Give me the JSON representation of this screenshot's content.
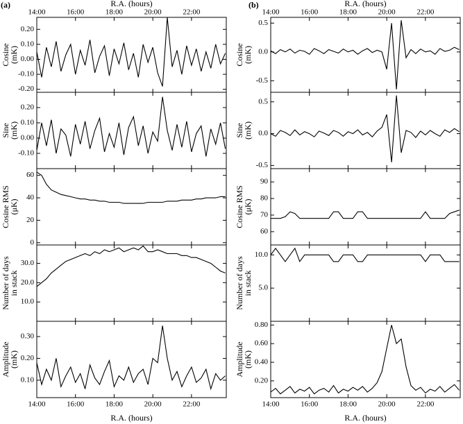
{
  "chart_data": [
    {
      "type": "line",
      "panel_label": "(a)",
      "xlabel": "R.A. (hours)",
      "xtick_labels": "top",
      "ylabel": [
        "Cosine",
        "(mK)"
      ],
      "color": "#000000",
      "x": [
        14,
        14.25,
        14.5,
        14.75,
        15,
        15.25,
        15.5,
        15.75,
        16,
        16.25,
        16.5,
        16.75,
        17,
        17.25,
        17.5,
        17.75,
        18,
        18.25,
        18.5,
        18.75,
        19,
        19.25,
        19.5,
        19.75,
        20,
        20.25,
        20.5,
        20.75,
        21,
        21.25,
        21.5,
        21.75,
        22,
        22.25,
        22.5,
        22.75,
        23,
        23.25,
        23.5,
        23.75
      ],
      "values": [
        0.05,
        -0.12,
        0.08,
        -0.05,
        0.12,
        -0.08,
        0.03,
        0.1,
        -0.1,
        0.06,
        -0.04,
        0.13,
        -0.09,
        0.02,
        0.09,
        -0.11,
        0.07,
        -0.03,
        0.11,
        -0.07,
        0.04,
        -0.12,
        0.1,
        -0.02,
        0.08,
        -0.09,
        -0.18,
        0.28,
        -0.05,
        0.06,
        -0.1,
        0.09,
        -0.04,
        0.07,
        -0.08,
        0.05,
        -0.06,
        0.1,
        -0.03,
        0.04
      ],
      "xlim": [
        14,
        23.8
      ],
      "xticks": [
        {
          "value": 14,
          "label": "14:00"
        },
        {
          "value": 16,
          "label": "16:00"
        },
        {
          "value": 18,
          "label": "18:00"
        },
        {
          "value": 20,
          "label": "20:00"
        },
        {
          "value": 22,
          "label": "22:00"
        }
      ],
      "ylim": [
        -0.22,
        0.28
      ],
      "yticks": [
        {
          "value": -0.2,
          "label": "-0.20"
        },
        {
          "value": -0.1,
          "label": "-0.10"
        },
        {
          "value": 0,
          "label": "0.00"
        },
        {
          "value": 0.1,
          "label": "0.10"
        },
        {
          "value": 0.2,
          "label": "0.20"
        }
      ]
    },
    {
      "type": "line",
      "xtick_labels": "none",
      "ylabel": [
        "Sine",
        "(mK)"
      ],
      "color": "#000000",
      "x": [
        14,
        14.25,
        14.5,
        14.75,
        15,
        15.25,
        15.5,
        15.75,
        16,
        16.25,
        16.5,
        16.75,
        17,
        17.25,
        17.5,
        17.75,
        18,
        18.25,
        18.5,
        18.75,
        19,
        19.25,
        19.5,
        19.75,
        20,
        20.25,
        20.5,
        20.75,
        21,
        21.25,
        21.5,
        21.75,
        22,
        22.25,
        22.5,
        22.75,
        23,
        23.25,
        23.5,
        23.75
      ],
      "values": [
        -0.08,
        0.1,
        -0.05,
        0.12,
        -0.1,
        0.06,
        0.02,
        -0.12,
        0.09,
        -0.04,
        0.11,
        -0.07,
        0.05,
        0.13,
        -0.09,
        0.03,
        -0.06,
        0.1,
        -0.11,
        0.07,
        0.14,
        -0.05,
        0.08,
        -0.1,
        0.04,
        -0.02,
        0.27,
        0.05,
        -0.08,
        0.09,
        -0.06,
        0.11,
        -0.09,
        0.03,
        0.08,
        -0.12,
        0.06,
        -0.04,
        0.1,
        -0.07
      ],
      "xlim": [
        14,
        23.8
      ],
      "xticks": [
        14,
        16,
        18,
        20,
        22
      ],
      "ylim": [
        -0.2,
        0.3
      ],
      "yticks": [
        {
          "value": -0.1,
          "label": "-0.10"
        },
        {
          "value": 0,
          "label": "0.00"
        },
        {
          "value": 0.1,
          "label": "0.10"
        },
        {
          "value": 0.2,
          "label": "0.20"
        }
      ]
    },
    {
      "type": "line",
      "xtick_labels": "none",
      "ylabel": [
        "Cosine RMS",
        "(μK)"
      ],
      "color": "#000000",
      "x": [
        14,
        14.25,
        14.5,
        14.75,
        15,
        15.25,
        15.5,
        15.75,
        16,
        16.25,
        16.5,
        16.75,
        17,
        17.25,
        17.5,
        17.75,
        18,
        18.25,
        18.5,
        18.75,
        19,
        19.25,
        19.5,
        19.75,
        20,
        20.25,
        20.5,
        20.75,
        21,
        21.25,
        21.5,
        21.75,
        22,
        22.25,
        22.5,
        22.75,
        23,
        23.25,
        23.5,
        23.75
      ],
      "values": [
        63,
        60,
        52,
        47,
        45,
        43,
        42,
        41,
        40,
        39,
        39,
        38,
        38,
        37,
        37,
        36,
        36,
        36,
        35,
        35,
        35,
        35,
        35,
        36,
        36,
        36,
        36,
        37,
        37,
        37,
        38,
        38,
        38,
        39,
        39,
        40,
        40,
        40,
        41,
        41
      ],
      "xlim": [
        14,
        23.8
      ],
      "xticks": [
        14,
        16,
        18,
        20,
        22
      ],
      "ylim": [
        -2,
        66
      ],
      "yticks": [
        0,
        20,
        40,
        60
      ]
    },
    {
      "type": "line",
      "xtick_labels": "none",
      "ylabel": [
        "Number of days",
        "in stack"
      ],
      "color": "#000000",
      "x": [
        14,
        14.25,
        14.5,
        14.75,
        15,
        15.25,
        15.5,
        15.75,
        16,
        16.25,
        16.5,
        16.75,
        17,
        17.25,
        17.5,
        17.75,
        18,
        18.25,
        18.5,
        18.75,
        19,
        19.25,
        19.5,
        19.75,
        20,
        20.25,
        20.5,
        20.75,
        21,
        21.25,
        21.5,
        21.75,
        22,
        22.25,
        22.5,
        22.75,
        23,
        23.25,
        23.5,
        23.75
      ],
      "values": [
        18,
        20,
        22,
        25,
        27,
        29,
        31,
        32,
        33,
        34,
        35,
        34,
        36,
        35,
        37,
        36,
        37,
        38,
        36,
        37,
        38,
        37,
        39,
        36,
        36,
        37,
        36,
        35,
        35,
        35,
        34,
        34,
        33,
        33,
        32,
        31,
        30,
        28,
        26,
        25
      ],
      "xlim": [
        14,
        23.8
      ],
      "xticks": [
        14,
        16,
        18,
        20,
        22
      ],
      "ylim": [
        0,
        39.5
      ],
      "yticks": [
        {
          "value": 10,
          "label": "10.0"
        },
        {
          "value": 20,
          "label": "20.0"
        },
        {
          "value": 30,
          "label": "30.0"
        }
      ]
    },
    {
      "type": "line",
      "xlabel": "R.A. (hours)",
      "xtick_labels": "bottom",
      "ylabel": [
        "Amplitude",
        "(mK)"
      ],
      "color": "#000000",
      "x": [
        14,
        14.25,
        14.5,
        14.75,
        15,
        15.25,
        15.5,
        15.75,
        16,
        16.25,
        16.5,
        16.75,
        17,
        17.25,
        17.5,
        17.75,
        18,
        18.25,
        18.5,
        18.75,
        19,
        19.25,
        19.5,
        19.75,
        20,
        20.25,
        20.5,
        20.75,
        21,
        21.25,
        21.5,
        21.75,
        22,
        22.25,
        22.5,
        22.75,
        23,
        23.25,
        23.5,
        23.75
      ],
      "values": [
        0.18,
        0.08,
        0.15,
        0.1,
        0.2,
        0.07,
        0.12,
        0.16,
        0.09,
        0.13,
        0.06,
        0.17,
        0.11,
        0.08,
        0.14,
        0.19,
        0.07,
        0.12,
        0.1,
        0.16,
        0.09,
        0.13,
        0.15,
        0.08,
        0.2,
        0.18,
        0.35,
        0.2,
        0.1,
        0.14,
        0.07,
        0.12,
        0.16,
        0.09,
        0.11,
        0.15,
        0.06,
        0.13,
        0.1,
        0.12
      ],
      "xlim": [
        14,
        23.8
      ],
      "xticks": [
        {
          "value": 14,
          "label": "14:00"
        },
        {
          "value": 16,
          "label": "16:00"
        },
        {
          "value": 18,
          "label": "18:00"
        },
        {
          "value": 20,
          "label": "20:00"
        },
        {
          "value": 22,
          "label": "22:00"
        }
      ],
      "ylim": [
        0.02,
        0.37
      ],
      "yticks": [
        {
          "value": 0.1,
          "label": "0.10"
        },
        {
          "value": 0.2,
          "label": "0.20"
        },
        {
          "value": 0.3,
          "label": "0.30"
        }
      ]
    },
    {
      "type": "line",
      "panel_label": "(b)",
      "xlabel": "R.A. (hours)",
      "xtick_labels": "top",
      "ylabel": [
        "Cosine",
        "(mK)"
      ],
      "color": "#000000",
      "x": [
        14,
        14.25,
        14.5,
        14.75,
        15,
        15.25,
        15.5,
        15.75,
        16,
        16.25,
        16.5,
        16.75,
        17,
        17.25,
        17.5,
        17.75,
        18,
        18.25,
        18.5,
        18.75,
        19,
        19.25,
        19.5,
        19.75,
        20,
        20.25,
        20.5,
        20.75,
        21,
        21.25,
        21.5,
        21.75,
        22,
        22.25,
        22.5,
        22.75,
        23,
        23.25,
        23.5,
        23.75
      ],
      "values": [
        0.02,
        -0.03,
        0.04,
        0.0,
        0.05,
        -0.02,
        0.03,
        0.01,
        -0.04,
        0.06,
        0.02,
        -0.03,
        0.04,
        0.01,
        -0.02,
        0.05,
        0.0,
        0.03,
        -0.04,
        0.02,
        0.06,
        -0.01,
        0.03,
        0.0,
        -0.3,
        0.5,
        -0.65,
        0.55,
        -0.1,
        0.04,
        -0.03,
        0.05,
        0.0,
        0.02,
        -0.04,
        0.06,
        0.01,
        0.03,
        0.08,
        0.04
      ],
      "xlim": [
        14,
        23.8
      ],
      "xticks": [
        {
          "value": 14,
          "label": "14:00"
        },
        {
          "value": 16,
          "label": "16:00"
        },
        {
          "value": 18,
          "label": "18:00"
        },
        {
          "value": 20,
          "label": "20:00"
        },
        {
          "value": 22,
          "label": "22:00"
        }
      ],
      "ylim": [
        -0.7,
        0.6
      ],
      "yticks": [
        {
          "value": -0.5,
          "label": "-0.5"
        },
        {
          "value": 0,
          "label": "0.0"
        },
        {
          "value": 0.5,
          "label": "0.5"
        }
      ]
    },
    {
      "type": "line",
      "xtick_labels": "none",
      "ylabel": [
        "Sine",
        "(mK)"
      ],
      "color": "#000000",
      "x": [
        14,
        14.25,
        14.5,
        14.75,
        15,
        15.25,
        15.5,
        15.75,
        16,
        16.25,
        16.5,
        16.75,
        17,
        17.25,
        17.5,
        17.75,
        18,
        18.25,
        18.5,
        18.75,
        19,
        19.25,
        19.5,
        19.75,
        20,
        20.25,
        20.5,
        20.75,
        21,
        21.25,
        21.5,
        21.75,
        22,
        22.25,
        22.5,
        22.75,
        23,
        23.25,
        23.5,
        23.75
      ],
      "values": [
        0.0,
        -0.04,
        0.05,
        0.02,
        -0.03,
        0.06,
        -0.02,
        0.03,
        0.0,
        -0.05,
        0.04,
        0.01,
        -0.03,
        0.05,
        0.02,
        -0.04,
        0.03,
        0.0,
        0.06,
        -0.02,
        0.02,
        -0.05,
        0.04,
        0.1,
        0.3,
        -0.45,
        0.6,
        -0.3,
        0.05,
        0.02,
        -0.06,
        0.04,
        -0.02,
        0.05,
        0.0,
        -0.04,
        0.06,
        0.02,
        0.08,
        0.03
      ],
      "xlim": [
        14,
        23.8
      ],
      "xticks": [
        14,
        16,
        18,
        20,
        22
      ],
      "ylim": [
        -0.55,
        0.65
      ],
      "yticks": [
        {
          "value": -0.5,
          "label": "-0.5"
        },
        {
          "value": 0,
          "label": "0.0"
        },
        {
          "value": 0.5,
          "label": "0.5"
        }
      ]
    },
    {
      "type": "line",
      "xtick_labels": "none",
      "ylabel": [
        "Cosine RMS",
        "(μK)"
      ],
      "color": "#000000",
      "x": [
        14,
        14.25,
        14.5,
        14.75,
        15,
        15.25,
        15.5,
        15.75,
        16,
        16.25,
        16.5,
        16.75,
        17,
        17.25,
        17.5,
        17.75,
        18,
        18.25,
        18.5,
        18.75,
        19,
        19.25,
        19.5,
        19.75,
        20,
        20.25,
        20.5,
        20.75,
        21,
        21.25,
        21.5,
        21.75,
        22,
        22.25,
        22.5,
        22.75,
        23,
        23.25,
        23.5,
        23.75
      ],
      "values": [
        68,
        68,
        68,
        69,
        72,
        71,
        68,
        68,
        68,
        68,
        68,
        68,
        68,
        72,
        72,
        68,
        68,
        68,
        72,
        72,
        68,
        68,
        68,
        68,
        68,
        68,
        68,
        68,
        68,
        68,
        68,
        68,
        72,
        68,
        68,
        68,
        68,
        71,
        72,
        73
      ],
      "xlim": [
        14,
        23.8
      ],
      "xticks": [
        14,
        16,
        18,
        20,
        22
      ],
      "ylim": [
        52,
        98
      ],
      "yticks": [
        60,
        70,
        80,
        90
      ]
    },
    {
      "type": "line",
      "xtick_labels": "none",
      "ylabel": [
        "Number of days",
        "in stack"
      ],
      "color": "#000000",
      "x": [
        14,
        14.25,
        14.5,
        14.75,
        15,
        15.25,
        15.5,
        15.75,
        16,
        16.25,
        16.5,
        16.75,
        17,
        17.25,
        17.5,
        17.75,
        18,
        18.25,
        18.5,
        18.75,
        19,
        19.25,
        19.5,
        19.75,
        20,
        20.25,
        20.5,
        20.75,
        21,
        21.25,
        21.5,
        21.75,
        22,
        22.25,
        22.5,
        22.75,
        23,
        23.25,
        23.5,
        23.75
      ],
      "values": [
        10,
        11,
        10,
        9,
        10,
        11,
        9,
        10,
        10,
        10,
        10,
        10,
        10,
        9,
        9,
        10,
        10,
        10,
        9,
        9,
        10,
        10,
        10,
        10,
        10,
        10,
        10,
        10,
        10,
        10,
        10,
        10,
        9,
        10,
        10,
        10,
        9,
        9,
        9,
        9
      ],
      "xlim": [
        14,
        23.8
      ],
      "xticks": [
        14,
        16,
        18,
        20,
        22
      ],
      "ylim": [
        0,
        11.5
      ],
      "yticks": [
        {
          "value": 5,
          "label": "5.0"
        },
        {
          "value": 10,
          "label": "10.0"
        }
      ]
    },
    {
      "type": "line",
      "xlabel": "R.A. (hours)",
      "xtick_labels": "bottom",
      "ylabel": [
        "Amplitude",
        "(mK)"
      ],
      "color": "#000000",
      "x": [
        14,
        14.25,
        14.5,
        14.75,
        15,
        15.25,
        15.5,
        15.75,
        16,
        16.25,
        16.5,
        16.75,
        17,
        17.25,
        17.5,
        17.75,
        18,
        18.25,
        18.5,
        18.75,
        19,
        19.25,
        19.5,
        19.75,
        20,
        20.25,
        20.5,
        20.75,
        21,
        21.25,
        21.5,
        21.75,
        22,
        22.25,
        22.5,
        22.75,
        23,
        23.25,
        23.5,
        23.75
      ],
      "values": [
        0.08,
        0.12,
        0.06,
        0.1,
        0.14,
        0.07,
        0.11,
        0.09,
        0.13,
        0.06,
        0.1,
        0.12,
        0.08,
        0.15,
        0.07,
        0.11,
        0.09,
        0.13,
        0.1,
        0.14,
        0.08,
        0.12,
        0.18,
        0.3,
        0.55,
        0.8,
        0.6,
        0.65,
        0.35,
        0.15,
        0.1,
        0.13,
        0.07,
        0.11,
        0.09,
        0.14,
        0.08,
        0.12,
        0.16,
        0.1
      ],
      "xlim": [
        14,
        23.8
      ],
      "xticks": [
        {
          "value": 14,
          "label": "14:00"
        },
        {
          "value": 16,
          "label": "16:00"
        },
        {
          "value": 18,
          "label": "18:00"
        },
        {
          "value": 20,
          "label": "20:00"
        },
        {
          "value": 22,
          "label": "22:00"
        }
      ],
      "ylim": [
        0.02,
        0.84
      ],
      "yticks": [
        {
          "value": 0.2,
          "label": "0.20"
        },
        {
          "value": 0.4,
          "label": "0.40"
        },
        {
          "value": 0.6,
          "label": "0.60"
        },
        {
          "value": 0.8,
          "label": "0.80"
        }
      ]
    }
  ]
}
